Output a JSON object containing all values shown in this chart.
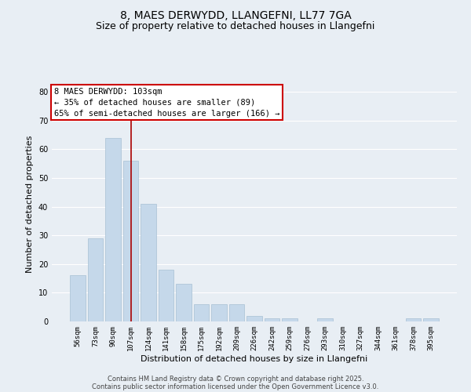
{
  "title_line1": "8, MAES DERWYDD, LLANGEFNI, LL77 7GA",
  "title_line2": "Size of property relative to detached houses in Llangefni",
  "xlabel": "Distribution of detached houses by size in Llangefni",
  "ylabel": "Number of detached properties",
  "categories": [
    "56sqm",
    "73sqm",
    "90sqm",
    "107sqm",
    "124sqm",
    "141sqm",
    "158sqm",
    "175sqm",
    "192sqm",
    "209sqm",
    "226sqm",
    "242sqm",
    "259sqm",
    "276sqm",
    "293sqm",
    "310sqm",
    "327sqm",
    "344sqm",
    "361sqm",
    "378sqm",
    "395sqm"
  ],
  "values": [
    16,
    29,
    64,
    56,
    41,
    18,
    13,
    6,
    6,
    6,
    2,
    1,
    1,
    0,
    1,
    0,
    0,
    0,
    0,
    1,
    1
  ],
  "bar_color": "#c5d8ea",
  "bar_edge_color": "#a8c0d4",
  "vline_x": 3.0,
  "vline_color": "#aa0000",
  "annotation_line1": "8 MAES DERWYDD: 103sqm",
  "annotation_line2": "← 35% of detached houses are smaller (89)",
  "annotation_line3": "65% of semi-detached houses are larger (166) →",
  "annotation_box_color": "#ffffff",
  "annotation_box_edge_color": "#cc0000",
  "ylim": [
    0,
    82
  ],
  "yticks": [
    0,
    10,
    20,
    30,
    40,
    50,
    60,
    70,
    80
  ],
  "background_color": "#e8eef4",
  "grid_color": "#ffffff",
  "title_fontsize": 10,
  "subtitle_fontsize": 9,
  "axis_label_fontsize": 8,
  "tick_fontsize": 6.5,
  "annotation_fontsize": 7.5,
  "footer_text1": "Contains HM Land Registry data © Crown copyright and database right 2025.",
  "footer_text2": "Contains public sector information licensed under the Open Government Licence v3.0.",
  "footer_fontsize": 6
}
